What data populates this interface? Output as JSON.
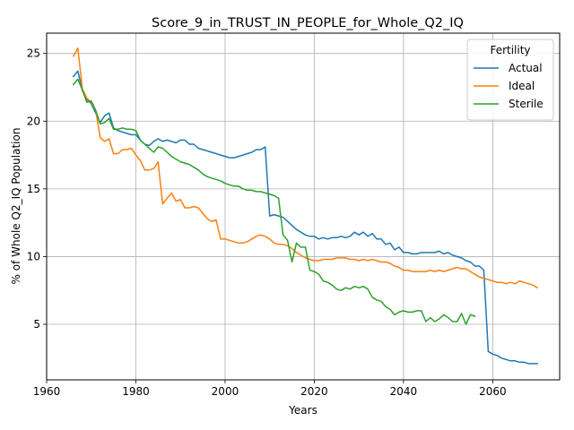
{
  "chart_data": {
    "type": "line",
    "title": "Score_9_in_TRUST_IN_PEOPLE_for_Whole_Q2_IQ",
    "xlabel": "Years",
    "ylabel": "% of Whole Q2_IQ Population",
    "xlim": [
      1960,
      2075
    ],
    "ylim": [
      0.9,
      26.5
    ],
    "xticks": [
      1960,
      1980,
      2000,
      2020,
      2040,
      2060
    ],
    "yticks": [
      5,
      10,
      15,
      20,
      25
    ],
    "grid": true,
    "legend": {
      "title": "Fertility",
      "placement": "top-right"
    },
    "series": [
      {
        "name": "Actual",
        "color": "#1f77b4",
        "x": [
          1966,
          1967,
          1968,
          1969,
          1970,
          1971,
          1972,
          1973,
          1974,
          1975,
          1976,
          1977,
          1978,
          1979,
          1980,
          1981,
          1982,
          1983,
          1984,
          1985,
          1986,
          1987,
          1988,
          1989,
          1990,
          1991,
          1992,
          1993,
          1994,
          1995,
          1996,
          1997,
          1998,
          1999,
          2000,
          2001,
          2002,
          2003,
          2004,
          2005,
          2006,
          2007,
          2008,
          2009,
          2010,
          2011,
          2012,
          2013,
          2014,
          2015,
          2016,
          2017,
          2018,
          2019,
          2020,
          2021,
          2022,
          2023,
          2024,
          2025,
          2026,
          2027,
          2028,
          2029,
          2030,
          2031,
          2032,
          2033,
          2034,
          2035,
          2036,
          2037,
          2038,
          2039,
          2040,
          2041,
          2042,
          2043,
          2044,
          2045,
          2046,
          2047,
          2048,
          2049,
          2050,
          2051,
          2052,
          2053,
          2054,
          2055,
          2056,
          2057,
          2058,
          2059,
          2060,
          2061,
          2062,
          2063,
          2064,
          2065,
          2066,
          2067,
          2068,
          2069,
          2070
        ],
        "y": [
          23.3,
          23.7,
          22.3,
          21.6,
          21.3,
          20.6,
          19.9,
          20.4,
          20.6,
          19.5,
          19.3,
          19.2,
          19.1,
          19.0,
          19.0,
          18.6,
          18.3,
          18.2,
          18.5,
          18.7,
          18.5,
          18.6,
          18.5,
          18.4,
          18.6,
          18.6,
          18.3,
          18.3,
          18.0,
          17.9,
          17.8,
          17.7,
          17.6,
          17.5,
          17.4,
          17.3,
          17.3,
          17.4,
          17.5,
          17.6,
          17.7,
          17.9,
          17.9,
          18.1,
          13.0,
          13.1,
          13.0,
          12.9,
          12.6,
          12.3,
          12.0,
          11.8,
          11.6,
          11.5,
          11.5,
          11.3,
          11.4,
          11.3,
          11.4,
          11.4,
          11.5,
          11.4,
          11.5,
          11.8,
          11.6,
          11.8,
          11.5,
          11.7,
          11.3,
          11.3,
          10.9,
          11.0,
          10.5,
          10.7,
          10.3,
          10.3,
          10.2,
          10.2,
          10.3,
          10.3,
          10.3,
          10.3,
          10.4,
          10.2,
          10.3,
          10.1,
          10.0,
          9.9,
          9.7,
          9.6,
          9.3,
          9.3,
          9.0,
          3.0,
          2.8,
          2.7,
          2.5,
          2.4,
          2.3,
          2.3,
          2.2,
          2.2,
          2.1,
          2.1,
          2.1
        ]
      },
      {
        "name": "Ideal",
        "color": "#ff7f0e",
        "x": [
          1966,
          1967,
          1968,
          1969,
          1970,
          1971,
          1972,
          1973,
          1974,
          1975,
          1976,
          1977,
          1978,
          1979,
          1980,
          1981,
          1982,
          1983,
          1984,
          1985,
          1986,
          1987,
          1988,
          1989,
          1990,
          1991,
          1992,
          1993,
          1994,
          1995,
          1996,
          1997,
          1998,
          1999,
          2000,
          2001,
          2002,
          2003,
          2004,
          2005,
          2006,
          2007,
          2008,
          2009,
          2010,
          2011,
          2012,
          2013,
          2014,
          2015,
          2016,
          2017,
          2018,
          2019,
          2020,
          2021,
          2022,
          2023,
          2024,
          2025,
          2026,
          2027,
          2028,
          2029,
          2030,
          2031,
          2032,
          2033,
          2034,
          2035,
          2036,
          2037,
          2038,
          2039,
          2040,
          2041,
          2042,
          2043,
          2044,
          2045,
          2046,
          2047,
          2048,
          2049,
          2050,
          2051,
          2052,
          2053,
          2054,
          2055,
          2056,
          2057,
          2058,
          2059,
          2060,
          2061,
          2062,
          2063,
          2064,
          2065,
          2066,
          2067,
          2068,
          2069,
          2070
        ],
        "y": [
          24.8,
          25.4,
          22.4,
          21.7,
          21.4,
          20.8,
          18.8,
          18.5,
          18.7,
          17.6,
          17.6,
          17.9,
          17.9,
          18.0,
          17.5,
          17.1,
          16.4,
          16.4,
          16.5,
          17.0,
          13.9,
          14.3,
          14.7,
          14.1,
          14.2,
          13.6,
          13.6,
          13.7,
          13.6,
          13.2,
          12.8,
          12.6,
          12.7,
          11.3,
          11.3,
          11.2,
          11.1,
          11.0,
          11.0,
          11.1,
          11.3,
          11.5,
          11.6,
          11.5,
          11.3,
          11.0,
          10.9,
          10.9,
          10.8,
          10.6,
          10.3,
          10.1,
          9.9,
          9.8,
          9.7,
          9.7,
          9.8,
          9.8,
          9.8,
          9.9,
          9.9,
          9.9,
          9.8,
          9.8,
          9.7,
          9.8,
          9.7,
          9.8,
          9.7,
          9.6,
          9.6,
          9.5,
          9.3,
          9.2,
          9.0,
          9.0,
          8.9,
          8.9,
          8.9,
          8.9,
          9.0,
          8.9,
          9.0,
          8.9,
          9.0,
          9.1,
          9.2,
          9.1,
          9.1,
          8.9,
          8.7,
          8.5,
          8.4,
          8.3,
          8.2,
          8.1,
          8.1,
          8.0,
          8.1,
          8.0,
          8.2,
          8.1,
          8.0,
          7.9,
          7.7
        ]
      },
      {
        "name": "Sterile",
        "color": "#2ca02c",
        "x": [
          1966,
          1967,
          1968,
          1969,
          1970,
          1971,
          1972,
          1973,
          1974,
          1975,
          1976,
          1977,
          1978,
          1979,
          1980,
          1981,
          1982,
          1983,
          1984,
          1985,
          1986,
          1987,
          1988,
          1989,
          1990,
          1991,
          1992,
          1993,
          1994,
          1995,
          1996,
          1997,
          1998,
          1999,
          2000,
          2001,
          2002,
          2003,
          2004,
          2005,
          2006,
          2007,
          2008,
          2009,
          2010,
          2011,
          2012,
          2013,
          2014,
          2015,
          2016,
          2017,
          2018,
          2019,
          2020,
          2021,
          2022,
          2023,
          2024,
          2025,
          2026,
          2027,
          2028,
          2029,
          2030,
          2031,
          2032,
          2033,
          2034,
          2035,
          2036,
          2037,
          2038,
          2039,
          2040,
          2041,
          2042,
          2043,
          2044,
          2045,
          2046,
          2047,
          2048,
          2049,
          2050,
          2051,
          2052,
          2053,
          2054,
          2055,
          2056
        ],
        "y": [
          22.7,
          23.1,
          22.3,
          21.4,
          21.5,
          20.8,
          19.8,
          19.9,
          20.2,
          19.4,
          19.4,
          19.5,
          19.4,
          19.4,
          19.3,
          18.6,
          18.3,
          18.0,
          17.7,
          18.1,
          18.0,
          17.7,
          17.4,
          17.2,
          17.0,
          16.9,
          16.8,
          16.6,
          16.4,
          16.1,
          15.9,
          15.8,
          15.7,
          15.6,
          15.4,
          15.3,
          15.2,
          15.2,
          15.0,
          14.9,
          14.9,
          14.8,
          14.8,
          14.7,
          14.6,
          14.5,
          14.3,
          11.6,
          11.2,
          9.6,
          11.0,
          10.7,
          10.7,
          9.0,
          8.9,
          8.7,
          8.2,
          8.1,
          7.9,
          7.6,
          7.5,
          7.7,
          7.6,
          7.8,
          7.7,
          7.8,
          7.6,
          7.0,
          6.8,
          6.7,
          6.3,
          6.1,
          5.7,
          5.9,
          6.0,
          5.9,
          5.9,
          6.0,
          6.0,
          5.2,
          5.5,
          5.2,
          5.4,
          5.7,
          5.5,
          5.2,
          5.2,
          5.8,
          5.0,
          5.7,
          5.6
        ]
      }
    ]
  }
}
